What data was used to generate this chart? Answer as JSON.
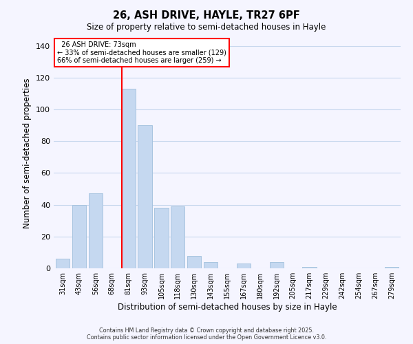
{
  "title": "26, ASH DRIVE, HAYLE, TR27 6PF",
  "subtitle": "Size of property relative to semi-detached houses in Hayle",
  "xlabel": "Distribution of semi-detached houses by size in Hayle",
  "ylabel": "Number of semi-detached properties",
  "categories": [
    "31sqm",
    "43sqm",
    "56sqm",
    "68sqm",
    "81sqm",
    "93sqm",
    "105sqm",
    "118sqm",
    "130sqm",
    "143sqm",
    "155sqm",
    "167sqm",
    "180sqm",
    "192sqm",
    "205sqm",
    "217sqm",
    "229sqm",
    "242sqm",
    "254sqm",
    "267sqm",
    "279sqm"
  ],
  "values": [
    6,
    40,
    47,
    0,
    113,
    90,
    38,
    39,
    8,
    4,
    0,
    3,
    0,
    4,
    0,
    1,
    0,
    0,
    0,
    0,
    1
  ],
  "bar_color": "#c5d8f0",
  "bar_edge_color": "#a8c4e0",
  "ylim": [
    0,
    145
  ],
  "legend_title": "26 ASH DRIVE: 73sqm",
  "legend_line1": "← 33% of semi-detached houses are smaller (129)",
  "legend_line2": "66% of semi-detached houses are larger (259) →",
  "footer_line1": "Contains HM Land Registry data © Crown copyright and database right 2025.",
  "footer_line2": "Contains public sector information licensed under the Open Government Licence v3.0.",
  "background_color": "#f5f5ff",
  "grid_color": "#c8d8ee"
}
